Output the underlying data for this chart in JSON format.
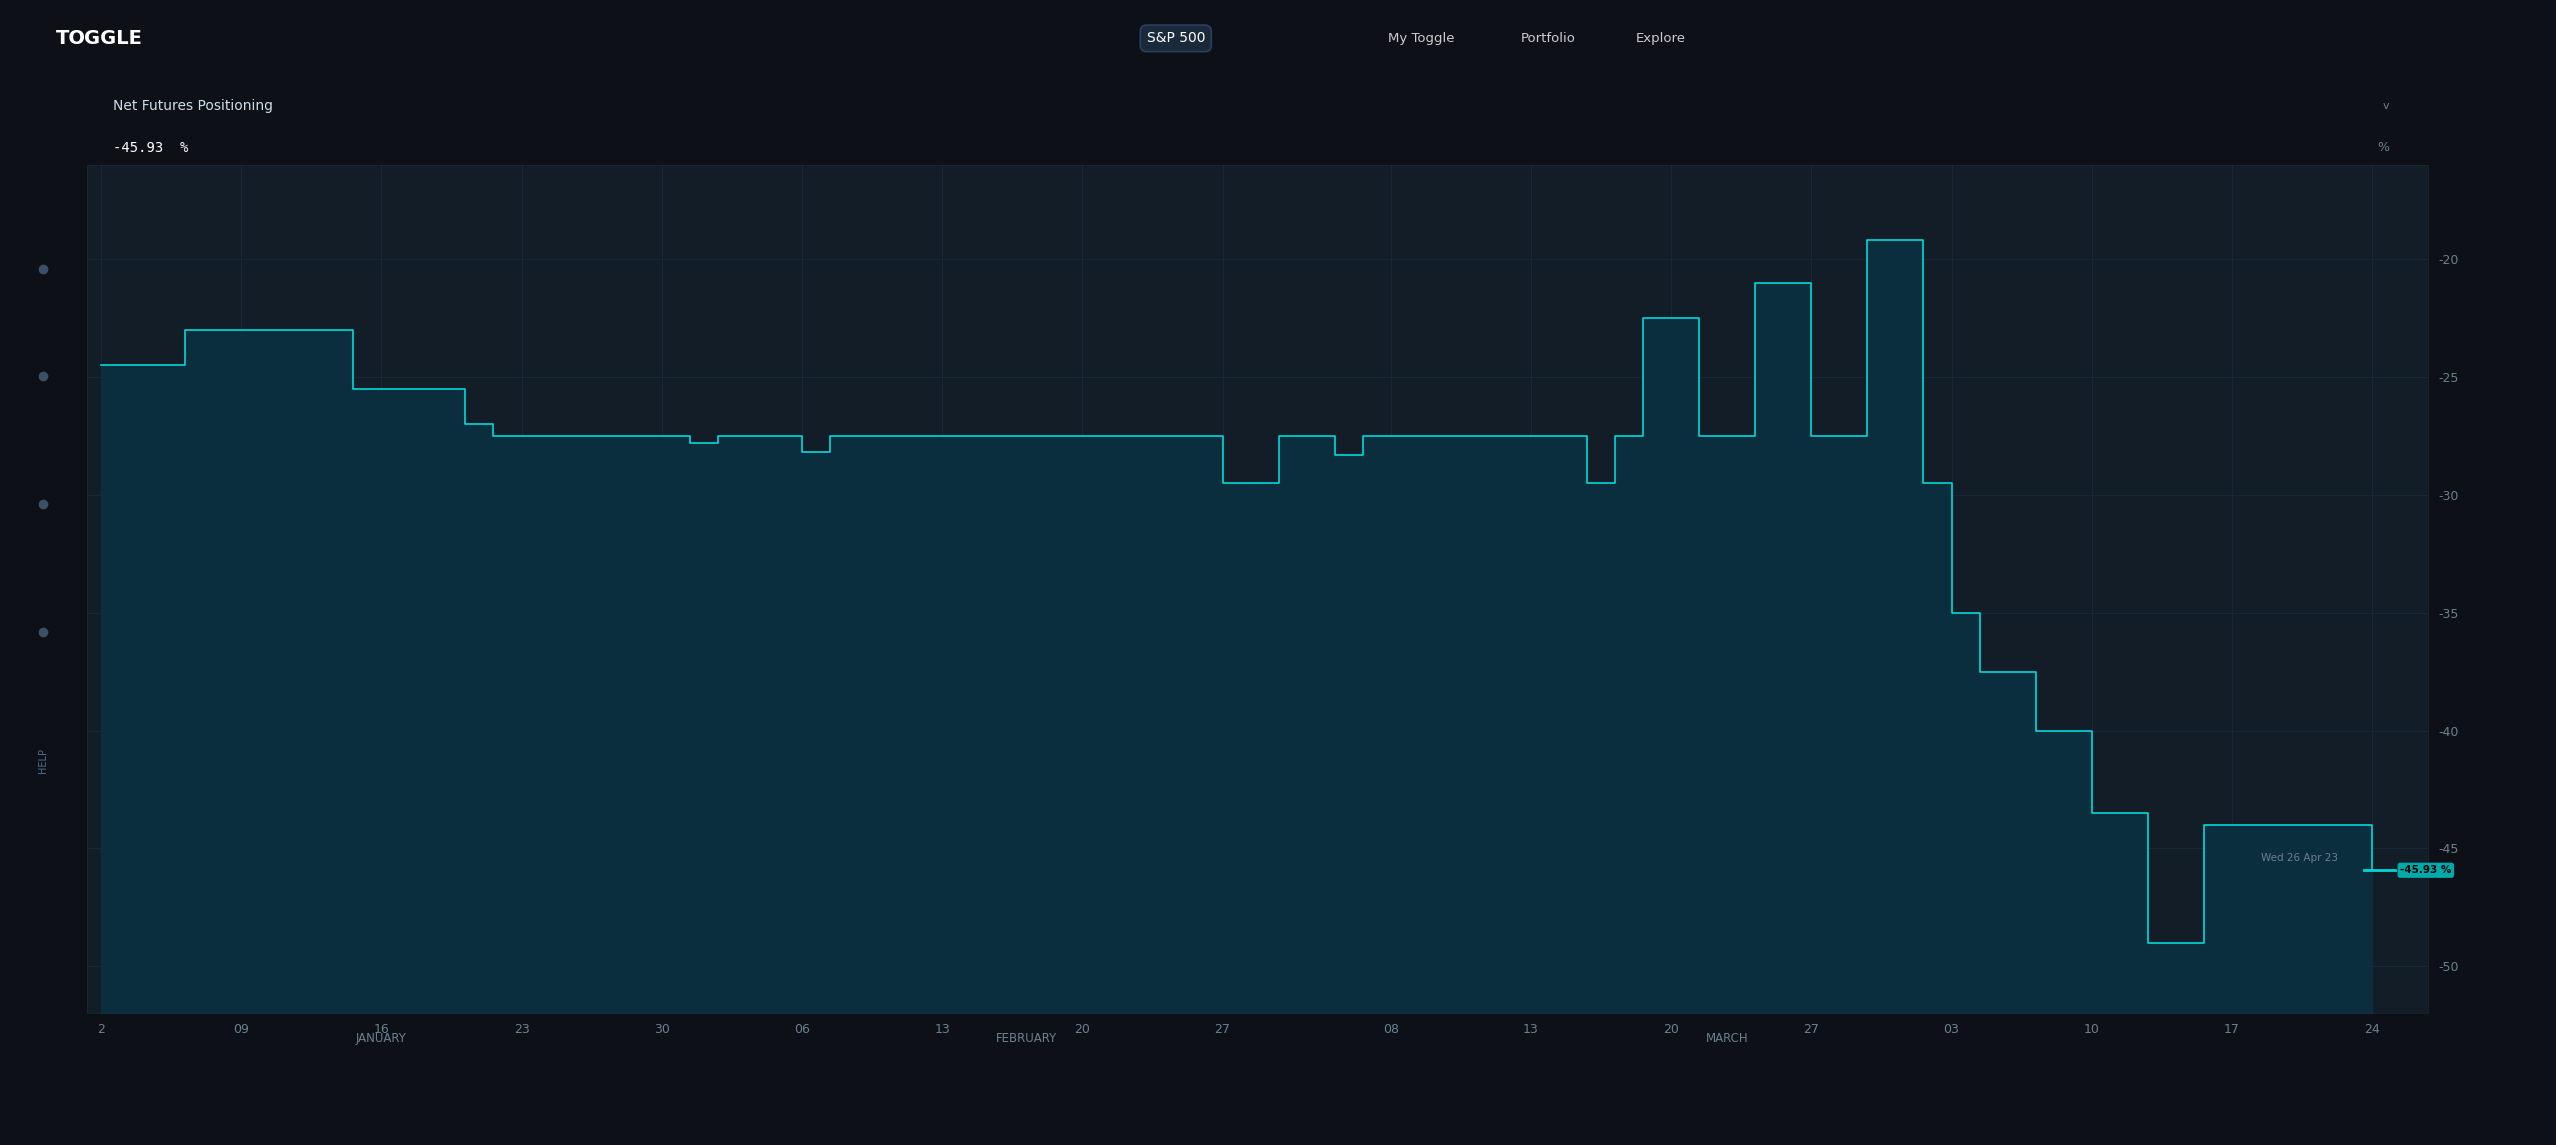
{
  "bg_color": "#0d1117",
  "chart_bg": "#131d27",
  "line_color": "#00d8d8",
  "fill_color": "#0a3040",
  "grid_color": "#1a2a3a",
  "dim_text": "#6a8090",
  "white_text": "#ffffff",
  "title": "Net Futures Positioning",
  "value_label": "-45.93  %",
  "pct_label": "%",
  "yticks": [
    -50,
    -45,
    -40,
    -35,
    -30,
    -25,
    -20
  ],
  "ylim": [
    -52,
    -16
  ],
  "xlim": [
    -0.5,
    83
  ],
  "x_tick_labels": [
    "2",
    "09",
    "16",
    "23",
    "30",
    "06",
    "13",
    "20",
    "27",
    "08",
    "13",
    "20",
    "27",
    "03",
    "10",
    "17",
    "24"
  ],
  "x_tick_positions": [
    0,
    5,
    10,
    15,
    20,
    25,
    30,
    35,
    40,
    46,
    51,
    56,
    61,
    66,
    71,
    76,
    81
  ],
  "month_label_data": [
    {
      "label": "JANUARY",
      "x": 10
    },
    {
      "label": "FEBRUARY",
      "x": 33
    },
    {
      "label": "MARCH",
      "x": 58
    }
  ],
  "annotation_date": "Wed 26 Apr 23",
  "annotation_val": "-45.93 %",
  "nav_items": [
    "My Toggle",
    "Portfolio",
    "Explore"
  ],
  "search_text": "S&P 500",
  "steps": [
    [
      0,
      -24.5
    ],
    [
      3,
      -23.0
    ],
    [
      8,
      -23.0
    ],
    [
      9,
      -25.5
    ],
    [
      12,
      -25.5
    ],
    [
      13,
      -27.0
    ],
    [
      14,
      -27.5
    ],
    [
      20,
      -27.5
    ],
    [
      21,
      -27.8
    ],
    [
      22,
      -27.5
    ],
    [
      24,
      -27.5
    ],
    [
      25,
      -28.2
    ],
    [
      26,
      -27.5
    ],
    [
      39,
      -27.5
    ],
    [
      40,
      -29.5
    ],
    [
      42,
      -27.5
    ],
    [
      43,
      -27.5
    ],
    [
      44,
      -28.3
    ],
    [
      45,
      -27.5
    ],
    [
      52,
      -27.5
    ],
    [
      53,
      -29.5
    ],
    [
      54,
      -27.5
    ],
    [
      55,
      -22.5
    ],
    [
      56,
      -22.5
    ],
    [
      57,
      -27.5
    ],
    [
      58,
      -27.5
    ],
    [
      59,
      -21.0
    ],
    [
      60,
      -21.0
    ],
    [
      61,
      -27.5
    ],
    [
      62,
      -27.5
    ],
    [
      63,
      -19.2
    ],
    [
      64,
      -19.2
    ],
    [
      65,
      -29.5
    ],
    [
      66,
      -35.0
    ],
    [
      67,
      -37.5
    ],
    [
      68,
      -37.5
    ],
    [
      69,
      -40.0
    ],
    [
      70,
      -40.0
    ],
    [
      71,
      -43.5
    ],
    [
      72,
      -43.5
    ],
    [
      73,
      -49.0
    ],
    [
      74,
      -49.0
    ],
    [
      75,
      -44.0
    ],
    [
      79,
      -44.0
    ],
    [
      80,
      -44.0
    ],
    [
      81,
      -45.93
    ]
  ]
}
